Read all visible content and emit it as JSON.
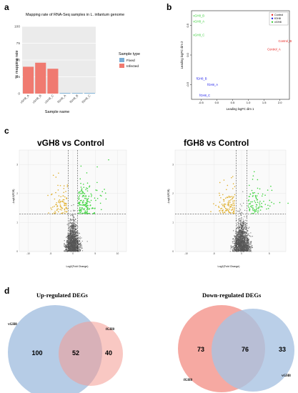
{
  "panels": {
    "a": "a",
    "b": "b",
    "c": "c",
    "d": "d"
  },
  "chart_data": [
    {
      "type": "bar",
      "title": "Mapping rate of RNA-Seq samples in L. infantum genome",
      "xlabel": "Sample name",
      "ylabel": "% mapping rate",
      "categories": [
        "vGH8_A",
        "vGH8_B",
        "vGH8_C",
        "fGH8_A",
        "fGH8_B",
        "fGH8_C"
      ],
      "values": [
        40,
        46,
        37,
        1,
        1,
        1
      ],
      "ylim": [
        0,
        100
      ],
      "yticks": [
        "0",
        "25",
        "50",
        "75",
        "100"
      ],
      "legend": {
        "title": "Sample type",
        "entries": [
          "Fixed",
          "Infected"
        ],
        "placement": "right"
      },
      "colors": {
        "Fixed": "#7aaed6",
        "Infected": "#f07a70"
      },
      "bar_types": [
        "Infected",
        "Infected",
        "Infected",
        "Fixed",
        "Fixed",
        "Fixed"
      ]
    },
    {
      "type": "scatter",
      "xlabel": "Leading logFC dim 1",
      "ylabel": "Leading logFC dim 2",
      "xticks": [
        "-0.5",
        "0.0",
        "0.5",
        "1.0",
        "1.5",
        "2.0"
      ],
      "yticks": [
        "-0.5",
        "0.0",
        "0.5"
      ],
      "xlim": [
        -0.8,
        2.3
      ],
      "ylim": [
        -0.75,
        0.75
      ],
      "legend": {
        "entries": [
          "Control",
          "fGH8",
          "vGH8"
        ],
        "placement": "top-right"
      },
      "colors": {
        "Control": "#e8231f",
        "fGH8": "#1a1aea",
        "vGH8": "#3ccf3c"
      },
      "points": [
        {
          "label": "vGH8_B",
          "group": "vGH8",
          "x": -0.75,
          "y": 0.65
        },
        {
          "label": "vGH8_A",
          "group": "vGH8",
          "x": -0.75,
          "y": 0.55
        },
        {
          "label": "vGH8_C",
          "group": "vGH8",
          "x": -0.75,
          "y": 0.32
        },
        {
          "label": "Control_B",
          "group": "Control",
          "x": 1.95,
          "y": 0.22
        },
        {
          "label": "Control_A",
          "group": "Control",
          "x": 1.6,
          "y": 0.08
        },
        {
          "label": "fGH8_B",
          "group": "fGH8",
          "x": -0.65,
          "y": -0.42
        },
        {
          "label": "fGH8_A",
          "group": "fGH8",
          "x": -0.3,
          "y": -0.52
        },
        {
          "label": "fGH8_C",
          "group": "fGH8",
          "x": -0.55,
          "y": -0.7
        }
      ]
    },
    {
      "type": "scatter",
      "title": "vGH8 vs Control",
      "xlabel": "Log2(Fold Change)",
      "ylabel": "-Log10(FDR)",
      "xticks": [
        "-10",
        "-5",
        "0",
        "5",
        "10"
      ],
      "yticks": [
        "0",
        "1",
        "2",
        "3"
      ],
      "xlim": [
        -12,
        12
      ],
      "ylim": [
        0,
        3.5
      ],
      "thresholds": {
        "fc": [
          -1,
          1
        ],
        "fdr": 1.3
      },
      "colors": {
        "up": "#3ed43e",
        "down": "#e0b030",
        "ns": "#555555"
      }
    },
    {
      "type": "scatter",
      "title": "fGH8 vs Control",
      "xlabel": "Log2(Fold Change)",
      "ylabel": "-Log10(FDR)",
      "xticks": [
        "-10",
        "-5",
        "0",
        "5"
      ],
      "yticks": [
        "0",
        "1",
        "2",
        "3"
      ],
      "xlim": [
        -12,
        8
      ],
      "ylim": [
        0,
        3.5
      ],
      "thresholds": {
        "fc": [
          -1,
          1
        ],
        "fdr": 1.3
      },
      "colors": {
        "up": "#3ed43e",
        "down": "#e0b030",
        "ns": "#555555"
      }
    }
  ],
  "venn_up": {
    "title": "Up-regulated DEGs",
    "left_label": "vGH8",
    "right_label": "fGH8",
    "left_only": "100",
    "both": "52",
    "right_only": "40",
    "left_color": "#a9c3e2",
    "right_color": "#f49a92"
  },
  "venn_down": {
    "title": "Down-regulated DEGs",
    "left_label": "fGH8",
    "right_label": "vGH8",
    "left_only": "73",
    "both": "76",
    "right_only": "33",
    "left_color": "#f49a92",
    "right_color": "#a9c3e2"
  }
}
